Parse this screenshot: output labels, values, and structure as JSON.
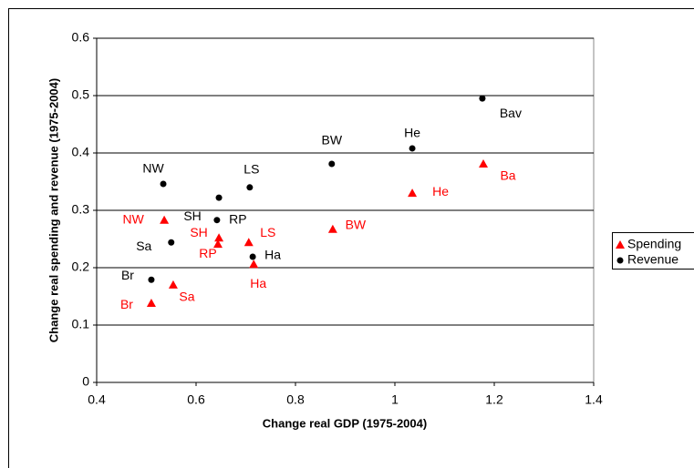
{
  "chart_data": {
    "type": "scatter",
    "xlabel": "Change real GDP (1975-2004)",
    "ylabel": "Change real spending and revenue (1975-2004)",
    "xlim": [
      0.4,
      1.4
    ],
    "xticks": [
      0.4,
      0.6,
      0.8,
      1,
      1.2,
      1.4
    ],
    "ylim": [
      0,
      0.6
    ],
    "yticks": [
      0,
      0.1,
      0.2,
      0.3,
      0.4,
      0.5,
      0.6
    ],
    "grid": true,
    "legend": "right",
    "series": [
      {
        "name": "Spending",
        "color": "#ff0000",
        "marker": "triangle",
        "x": [
          1.178,
          1.035,
          0.875,
          0.536,
          0.706,
          0.646,
          0.644,
          0.716,
          0.554,
          0.51
        ],
        "values": [
          0.381,
          0.33,
          0.267,
          0.283,
          0.244,
          0.252,
          0.241,
          0.206,
          0.17,
          0.138
        ],
        "labels": [
          "Ba",
          "He",
          "BW",
          "NW",
          "LS",
          "SH",
          "RP",
          "Ha",
          "Sa",
          "Br"
        ]
      },
      {
        "name": "Revenue",
        "color": "#000000",
        "marker": "circle",
        "x": [
          1.176,
          1.035,
          0.873,
          0.534,
          0.708,
          0.646,
          0.642,
          0.55,
          0.714,
          0.51
        ],
        "values": [
          0.495,
          0.408,
          0.381,
          0.346,
          0.34,
          0.322,
          0.283,
          0.244,
          0.219,
          0.179
        ],
        "labels": [
          "Bav",
          "He",
          "BW",
          "NW",
          "LS",
          "SH",
          "RP",
          "Sa",
          "Ha",
          "Br"
        ]
      }
    ]
  }
}
